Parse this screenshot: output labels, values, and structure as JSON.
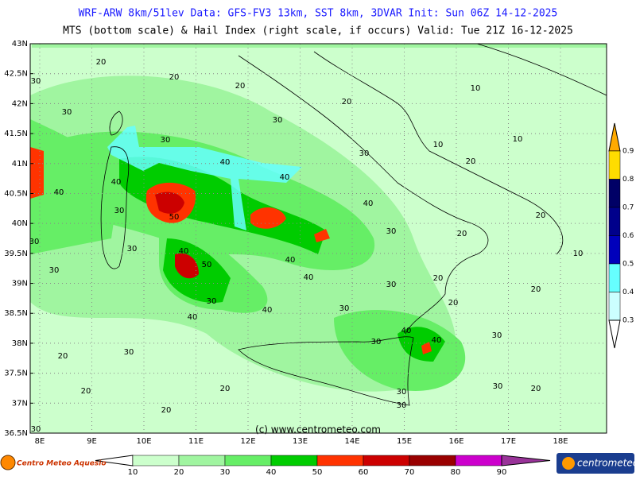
{
  "header": {
    "line1": "WRF-ARW 8km/51lev  Data: GFS-FV3 13km, SST 8km, 3DVAR   Init: Sun 06Z 14-12-2025",
    "line2": "MTS (bottom scale) & Hail Index (right scale, if occurs) Valid: Tue 21Z 16-12-2025"
  },
  "lat_labels": [
    "43N",
    "42.5N",
    "42N",
    "41.5N",
    "41N",
    "40.5N",
    "40N",
    "39.5N",
    "39N",
    "38.5N",
    "38N",
    "37.5N",
    "37N",
    "36.5N"
  ],
  "lon_labels": [
    "8E",
    "9E",
    "10E",
    "11E",
    "12E",
    "13E",
    "14E",
    "15E",
    "16E",
    "17E",
    "18E"
  ],
  "contour_labels": [
    20,
    30,
    20,
    20,
    20,
    10,
    30,
    30,
    10,
    10,
    30,
    30,
    20,
    40,
    40,
    40,
    40,
    40,
    50,
    30,
    30,
    20,
    20,
    30,
    30,
    10,
    40,
    50,
    40,
    30,
    40,
    30,
    20,
    20,
    30,
    30,
    40,
    20,
    40,
    40,
    30,
    30,
    20,
    40,
    30,
    20,
    20,
    30,
    20,
    30,
    20,
    30,
    30
  ],
  "hail_scale": {
    "labels": [
      "0.9",
      "0.8",
      "0.7",
      "0.6",
      "0.5",
      "0.4",
      "0.3"
    ],
    "colors": [
      "#ffaa00",
      "#ffdd00",
      "#000066",
      "#00008b",
      "#0000bb",
      "#66ffff",
      "#ccffff",
      "#ffffff"
    ]
  },
  "mts_scale": {
    "labels": [
      10,
      20,
      30,
      40,
      50,
      60,
      70,
      80,
      90
    ],
    "colors": [
      "#ffffff",
      "#ccffcc",
      "#a0f5a0",
      "#66ee66",
      "#00cc00",
      "#ff3300",
      "#cc0000",
      "#990000",
      "#cc00cc",
      "#993399"
    ]
  },
  "copyright": "(c) www.centrometeo.com",
  "logo_left": "Centro Meteo Aquesio",
  "logo_right": "centrometeo"
}
